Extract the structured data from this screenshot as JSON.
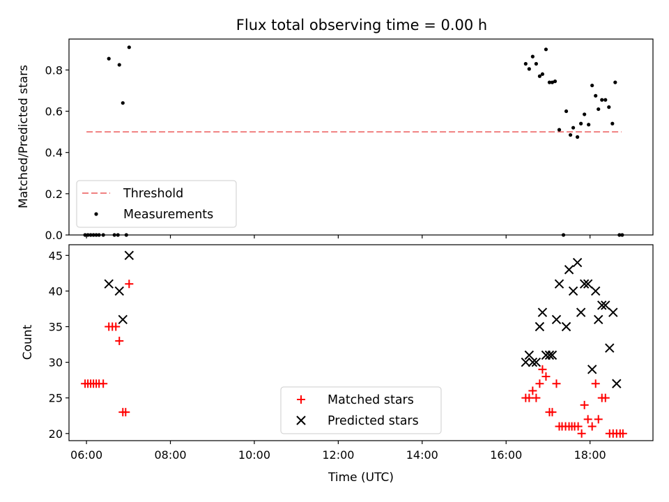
{
  "chart_data": [
    {
      "type": "scatter",
      "title": "Flux total observing time = 0.00 h",
      "ylabel": "Matched/Predicted stars",
      "xlim": [
        "05:35",
        "19:30"
      ],
      "ylim": [
        0,
        0.95
      ],
      "yticks": [
        0.0,
        0.2,
        0.4,
        0.6,
        0.8
      ],
      "ytick_labels": [
        "0.0",
        "0.2",
        "0.4",
        "0.6",
        "0.8"
      ],
      "legend": {
        "location": "lower-left",
        "entries": [
          "Threshold",
          "Measurements"
        ]
      },
      "threshold": {
        "name": "Threshold",
        "value": 0.5,
        "x_start": "06:00",
        "x_end": "18:45",
        "color": "#f08080",
        "style": "dashed"
      },
      "series": [
        {
          "name": "Measurements",
          "color": "#000000",
          "marker": "dot",
          "points": [
            [
              "05:58",
              0
            ],
            [
              "06:02",
              0
            ],
            [
              "06:06",
              0
            ],
            [
              "06:10",
              0
            ],
            [
              "06:14",
              0
            ],
            [
              "06:18",
              0
            ],
            [
              "06:24",
              0
            ],
            [
              "06:32",
              0.855
            ],
            [
              "06:40",
              0
            ],
            [
              "06:45",
              0
            ],
            [
              "06:47",
              0.825
            ],
            [
              "06:52",
              0.64
            ],
            [
              "06:57",
              0
            ],
            [
              "07:01",
              0.91
            ],
            [
              "16:28",
              0.83
            ],
            [
              "16:33",
              0.805
            ],
            [
              "16:38",
              0.865
            ],
            [
              "16:43",
              0.83
            ],
            [
              "16:48",
              0.77
            ],
            [
              "16:52",
              0.78
            ],
            [
              "16:57",
              0.9
            ],
            [
              "17:02",
              0.74
            ],
            [
              "17:06",
              0.74
            ],
            [
              "17:10",
              0.745
            ],
            [
              "17:16",
              0.51
            ],
            [
              "17:22",
              0
            ],
            [
              "17:26",
              0.6
            ],
            [
              "17:32",
              0.485
            ],
            [
              "17:36",
              0.52
            ],
            [
              "17:42",
              0.475
            ],
            [
              "17:47",
              0.54
            ],
            [
              "17:52",
              0.585
            ],
            [
              "17:58",
              0.535
            ],
            [
              "18:03",
              0.725
            ],
            [
              "18:08",
              0.675
            ],
            [
              "18:12",
              0.61
            ],
            [
              "18:17",
              0.655
            ],
            [
              "18:22",
              0.655
            ],
            [
              "18:27",
              0.62
            ],
            [
              "18:32",
              0.54
            ],
            [
              "18:36",
              0.74
            ],
            [
              "18:42",
              0
            ],
            [
              "18:46",
              0
            ]
          ]
        }
      ]
    },
    {
      "type": "scatter",
      "xlabel": "Time (UTC)",
      "ylabel": "Count",
      "xlim": [
        "05:35",
        "19:30"
      ],
      "ylim": [
        19,
        46.5
      ],
      "yticks": [
        20,
        25,
        30,
        35,
        40,
        45
      ],
      "ytick_labels": [
        "20",
        "25",
        "30",
        "35",
        "40",
        "45"
      ],
      "xticks": [
        "06:00",
        "08:00",
        "10:00",
        "12:00",
        "14:00",
        "16:00",
        "18:00"
      ],
      "legend": {
        "location": "lower-center",
        "entries": [
          "Matched stars",
          "Predicted stars"
        ]
      },
      "series": [
        {
          "name": "Matched stars",
          "color": "#ff0000",
          "marker": "plus",
          "points": [
            [
              "05:58",
              27
            ],
            [
              "06:02",
              27
            ],
            [
              "06:06",
              27
            ],
            [
              "06:10",
              27
            ],
            [
              "06:14",
              27
            ],
            [
              "06:18",
              27
            ],
            [
              "06:24",
              27
            ],
            [
              "06:32",
              35
            ],
            [
              "06:37",
              35
            ],
            [
              "06:42",
              35
            ],
            [
              "06:47",
              33
            ],
            [
              "06:52",
              23
            ],
            [
              "06:56",
              23
            ],
            [
              "07:01",
              41
            ],
            [
              "16:28",
              25
            ],
            [
              "16:33",
              25
            ],
            [
              "16:38",
              26
            ],
            [
              "16:43",
              25
            ],
            [
              "16:48",
              27
            ],
            [
              "16:52",
              29
            ],
            [
              "16:57",
              28
            ],
            [
              "17:02",
              23
            ],
            [
              "17:06",
              23
            ],
            [
              "17:12",
              27
            ],
            [
              "17:16",
              21
            ],
            [
              "17:20",
              21
            ],
            [
              "17:25",
              21
            ],
            [
              "17:30",
              21
            ],
            [
              "17:34",
              21
            ],
            [
              "17:38",
              21
            ],
            [
              "17:43",
              21
            ],
            [
              "17:48",
              20
            ],
            [
              "17:52",
              24
            ],
            [
              "17:57",
              22
            ],
            [
              "18:03",
              21
            ],
            [
              "18:08",
              27
            ],
            [
              "18:12",
              22
            ],
            [
              "18:17",
              25
            ],
            [
              "18:22",
              25
            ],
            [
              "18:28",
              20
            ],
            [
              "18:33",
              20
            ],
            [
              "18:38",
              20
            ],
            [
              "18:43",
              20
            ],
            [
              "18:47",
              20
            ]
          ]
        },
        {
          "name": "Predicted stars",
          "color": "#000000",
          "marker": "x",
          "points": [
            [
              "06:32",
              41
            ],
            [
              "06:47",
              40
            ],
            [
              "06:52",
              36
            ],
            [
              "07:01",
              45
            ],
            [
              "16:28",
              30
            ],
            [
              "16:33",
              31
            ],
            [
              "16:38",
              30
            ],
            [
              "16:43",
              30
            ],
            [
              "16:48",
              35
            ],
            [
              "16:52",
              37
            ],
            [
              "16:57",
              31
            ],
            [
              "17:02",
              31
            ],
            [
              "17:06",
              31
            ],
            [
              "17:12",
              36
            ],
            [
              "17:16",
              41
            ],
            [
              "17:26",
              35
            ],
            [
              "17:30",
              43
            ],
            [
              "17:36",
              40
            ],
            [
              "17:42",
              44
            ],
            [
              "17:47",
              37
            ],
            [
              "17:52",
              41
            ],
            [
              "17:57",
              41
            ],
            [
              "18:03",
              29
            ],
            [
              "18:08",
              40
            ],
            [
              "18:12",
              36
            ],
            [
              "18:17",
              38
            ],
            [
              "18:22",
              38
            ],
            [
              "18:28",
              32
            ],
            [
              "18:33",
              37
            ],
            [
              "18:38",
              27
            ]
          ]
        }
      ]
    }
  ]
}
